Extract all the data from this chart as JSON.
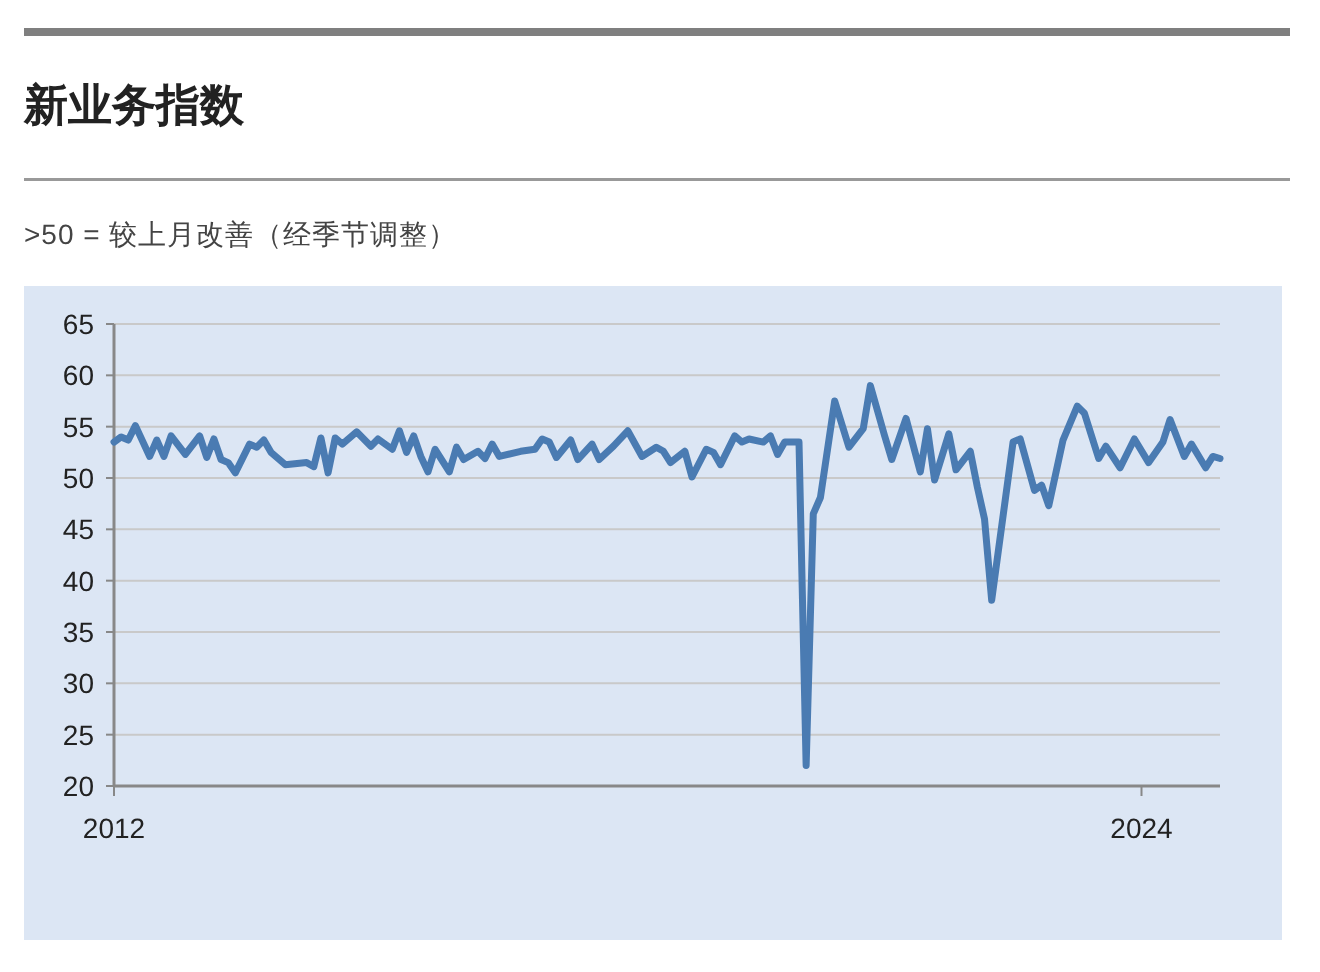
{
  "chart_data": {
    "type": "line",
    "title": "新业务指数",
    "subtitle": ">50 = 较上月改善（经季节调整）",
    "x": [
      "2012-01",
      "2012-02",
      "2012-03",
      "2012-04",
      "2012-06",
      "2012-07",
      "2012-08",
      "2012-09",
      "2012-11",
      "2013-01",
      "2013-02",
      "2013-03",
      "2013-04",
      "2013-05",
      "2013-06",
      "2013-08",
      "2013-09",
      "2013-10",
      "2013-11",
      "2014-01",
      "2014-04",
      "2014-05",
      "2014-06",
      "2014-07",
      "2014-08",
      "2014-09",
      "2014-11",
      "2015-01",
      "2015-02",
      "2015-04",
      "2015-05",
      "2015-06",
      "2015-07",
      "2015-08",
      "2015-09",
      "2015-10",
      "2015-12",
      "2016-01",
      "2016-02",
      "2016-04",
      "2016-05",
      "2016-06",
      "2016-07",
      "2016-10",
      "2016-12",
      "2017-01",
      "2017-02",
      "2017-03",
      "2017-05",
      "2017-06",
      "2017-08",
      "2017-09",
      "2017-11",
      "2018-01",
      "2018-03",
      "2018-05",
      "2018-06",
      "2018-07",
      "2018-09",
      "2018-10",
      "2018-12",
      "2019-01",
      "2019-02",
      "2019-04",
      "2019-05",
      "2019-06",
      "2019-08",
      "2019-09",
      "2019-10",
      "2019-11",
      "2020-01",
      "2020-02",
      "2020-03",
      "2020-04",
      "2020-06",
      "2020-08",
      "2020-10",
      "2020-11",
      "2021-01",
      "2021-02",
      "2021-04",
      "2021-06",
      "2021-07",
      "2021-08",
      "2021-10",
      "2021-11",
      "2022-01",
      "2022-02",
      "2022-03",
      "2022-04",
      "2022-07",
      "2022-08",
      "2022-10",
      "2022-11",
      "2022-12",
      "2023-02",
      "2023-04",
      "2023-05",
      "2023-07",
      "2023-08",
      "2023-10",
      "2023-12",
      "2024-02",
      "2024-04",
      "2024-05",
      "2024-07",
      "2024-08",
      "2024-10",
      "2024-11",
      "2024-12"
    ],
    "series": [
      {
        "color": "#4a7bb2",
        "values": [
          53.5,
          54,
          53.7,
          55.1,
          52.1,
          53.7,
          52.1,
          54.1,
          52.3,
          54.1,
          52,
          53.8,
          51.8,
          51.5,
          50.5,
          53.3,
          53,
          53.7,
          52.5,
          51.3,
          51.5,
          51.1,
          53.9,
          50.5,
          53.9,
          53.3,
          54.5,
          53.1,
          53.8,
          52.8,
          54.6,
          52.5,
          54.1,
          52.1,
          50.6,
          52.8,
          50.6,
          53,
          51.8,
          52.6,
          51.9,
          53.3,
          52.1,
          52.6,
          52.8,
          53.8,
          53.5,
          52,
          53.7,
          51.8,
          53.3,
          51.8,
          53.1,
          54.6,
          52.1,
          53,
          52.6,
          51.5,
          52.6,
          50.1,
          52.8,
          52.5,
          51.3,
          54.1,
          53.5,
          53.8,
          53.5,
          54.1,
          52.3,
          53.5,
          53.5,
          22,
          46.5,
          48.1,
          57.5,
          53,
          54.8,
          59,
          54.1,
          51.8,
          55.8,
          50.6,
          54.8,
          49.8,
          54.3,
          50.8,
          52.6,
          49.1,
          46,
          38.1,
          53.5,
          53.8,
          48.8,
          49.3,
          47.3,
          53.7,
          57,
          56.3,
          51.9,
          53.1,
          51,
          53.8,
          51.5,
          53.5,
          55.7,
          52.1,
          53.3,
          51,
          52.1,
          51.9
        ]
      }
    ],
    "xlim": [
      "2012-01",
      "2024-12"
    ],
    "xticks": [
      {
        "value": "2012-01",
        "label": "2012"
      },
      {
        "value": "2024-01",
        "label": "2024"
      }
    ],
    "ylim": [
      20,
      65
    ],
    "yticks": [
      20,
      25,
      30,
      35,
      40,
      45,
      50,
      55,
      60,
      65
    ],
    "grid": "y",
    "line_style": "solid",
    "marker": "none"
  }
}
